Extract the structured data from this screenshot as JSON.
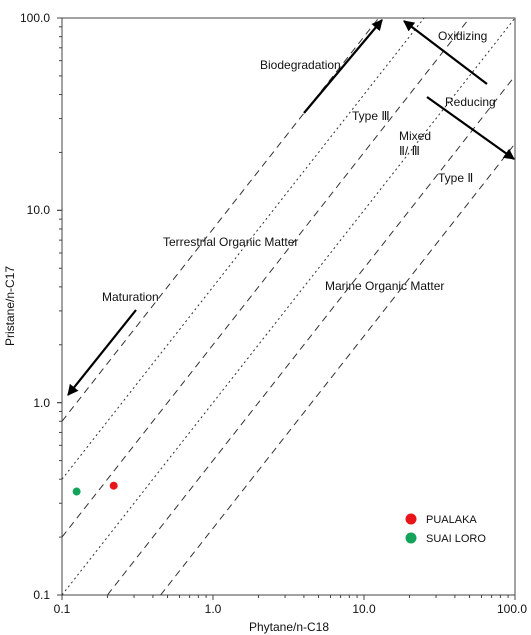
{
  "chart_data": {
    "type": "scatter",
    "title": "",
    "xlabel": "Phytane/n-C18",
    "ylabel": "Pristane/n-C17",
    "x_scale": "log",
    "y_scale": "log",
    "xlim": [
      0.1,
      100
    ],
    "ylim": [
      0.1,
      100
    ],
    "x_ticks": [
      "0.1",
      "1.0",
      "10.0",
      "100.0"
    ],
    "y_ticks": [
      "0.1",
      "1.0",
      "10.0",
      "100.0"
    ],
    "grid": false,
    "legend_position": "bottom-right",
    "series": [
      {
        "name": "PUALAKA",
        "color": "#e8161b",
        "points": [
          [
            0.22,
            0.37
          ]
        ]
      },
      {
        "name": "SUAI LORO",
        "color": "#13a35a",
        "points": [
          [
            0.125,
            0.345
          ]
        ]
      }
    ],
    "annotations": {
      "oxidizing": "Oxidizing",
      "biodegradation": "Biodegradation",
      "reducing": "Reducing",
      "type3": "Type Ⅲ",
      "mixed1": "Mixed",
      "mixed2": "Ⅱ/ Ⅲ",
      "type2": "Type Ⅱ",
      "terrestrial": "Terrestrial Organic Matter",
      "maturation": "Maturation",
      "marine": "Marine Organic Matter"
    }
  }
}
